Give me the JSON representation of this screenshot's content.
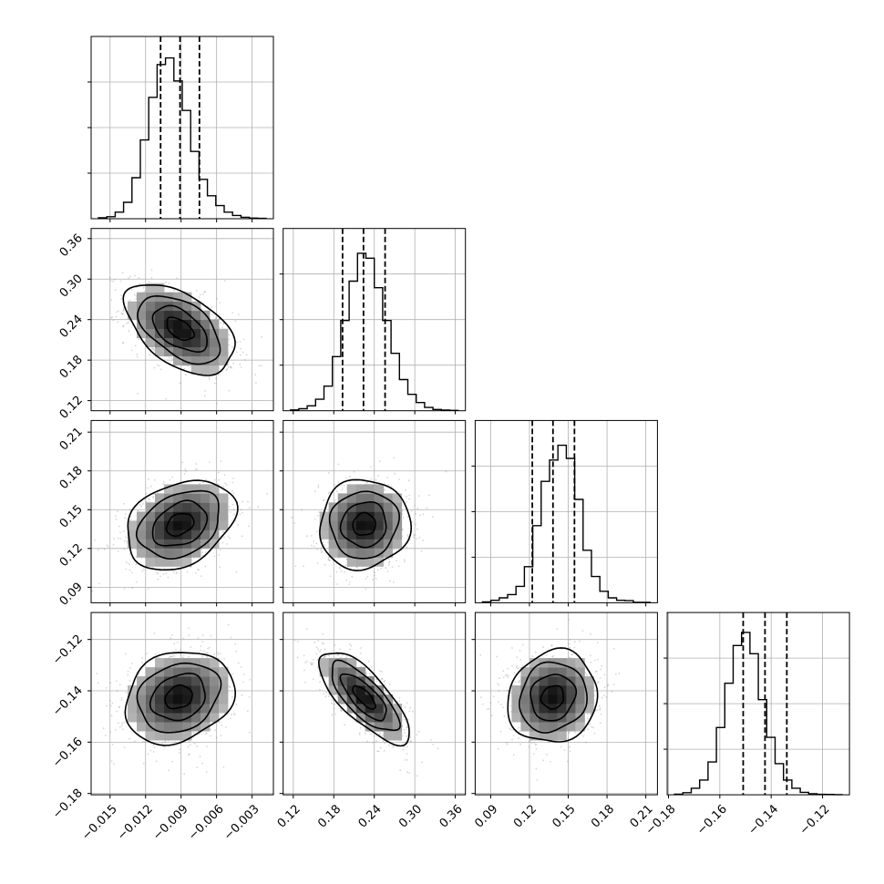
{
  "chart_data": {
    "type": "corner",
    "title": "",
    "parameters": [
      {
        "ticks": [
          "−0.015",
          "−0.012",
          "−0.009",
          "−0.006",
          "−0.003"
        ],
        "range": [
          -0.0166,
          -0.0012
        ],
        "quantiles": [
          -0.01073,
          -0.00909,
          -0.00745
        ]
      },
      {
        "ticks": [
          "0.12",
          "0.18",
          "0.24",
          "0.30",
          "0.36"
        ],
        "range": [
          0.105,
          0.375
        ],
        "quantiles": [
          0.193,
          0.224,
          0.256
        ]
      },
      {
        "ticks": [
          "0.09",
          "0.12",
          "0.15",
          "0.18",
          "0.21"
        ],
        "range": [
          0.078,
          0.219
        ],
        "quantiles": [
          0.1222,
          0.1382,
          0.1548
        ]
      },
      {
        "ticks": [
          "−0.18",
          "−0.16",
          "−0.14",
          "−0.12"
        ],
        "range": [
          -0.1805,
          -0.1095
        ],
        "quantiles": [
          -0.1509,
          -0.1424,
          -0.1339
        ]
      }
    ],
    "diagonal_histograms": [
      [
        0.006,
        0.012,
        0.04,
        0.1,
        0.25,
        0.48,
        0.74,
        0.94,
        0.98,
        0.84,
        0.66,
        0.41,
        0.24,
        0.14,
        0.08,
        0.04,
        0.02,
        0.009,
        0.004,
        0.002
      ],
      [
        0.005,
        0.012,
        0.03,
        0.07,
        0.15,
        0.33,
        0.55,
        0.79,
        0.96,
        0.93,
        0.75,
        0.55,
        0.35,
        0.19,
        0.1,
        0.05,
        0.02,
        0.008,
        0.004,
        0.002
      ],
      [
        0.005,
        0.015,
        0.03,
        0.05,
        0.1,
        0.22,
        0.47,
        0.74,
        0.87,
        0.96,
        0.88,
        0.63,
        0.32,
        0.16,
        0.07,
        0.03,
        0.015,
        0.013,
        0.003,
        0.002
      ],
      [
        0.004,
        0.013,
        0.04,
        0.09,
        0.2,
        0.41,
        0.68,
        0.91,
        0.99,
        0.86,
        0.58,
        0.35,
        0.19,
        0.09,
        0.04,
        0.015,
        0.006,
        0.003,
        0.002,
        0.001
      ]
    ],
    "pair_panels": [
      {
        "row": 1,
        "col": 0,
        "mean": [
          -0.0091,
          0.226
        ],
        "sd": [
          0.0023,
          0.0335
        ],
        "rho": -0.5
      },
      {
        "row": 2,
        "col": 0,
        "mean": [
          -0.0091,
          0.1386
        ],
        "sd": [
          0.0023,
          0.0173
        ],
        "rho": 0.3
      },
      {
        "row": 2,
        "col": 1,
        "mean": [
          0.225,
          0.1386
        ],
        "sd": [
          0.0335,
          0.0173
        ],
        "rho": 0.05
      },
      {
        "row": 3,
        "col": 0,
        "mean": [
          -0.0092,
          -0.1425
        ],
        "sd": [
          0.0023,
          0.009
        ],
        "rho": 0.2
      },
      {
        "row": 3,
        "col": 1,
        "mean": [
          0.225,
          -0.1425
        ],
        "sd": [
          0.0335,
          0.009
        ],
        "rho": -0.75
      },
      {
        "row": 3,
        "col": 2,
        "mean": [
          0.138,
          -0.1425
        ],
        "sd": [
          0.0173,
          0.009
        ],
        "rho": 0.1
      }
    ],
    "contour_levels_sigma": [
      0.5,
      1.0,
      1.5,
      2.0
    ],
    "colors": {
      "line": "#000000",
      "grid": "#b0b0b0",
      "points": "#8a8a8a"
    }
  }
}
